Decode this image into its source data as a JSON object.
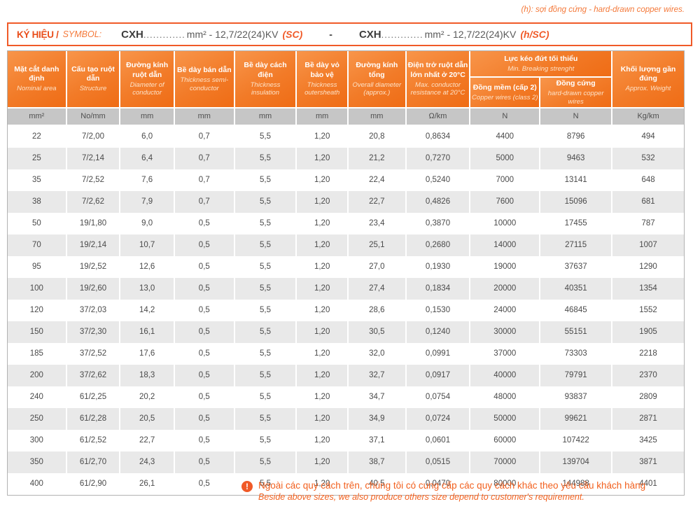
{
  "top_note": "(h): sợi đồng cứng - hard-drawn copper wires.",
  "symbol_box": {
    "label_vi": "KÝ HIỆU /",
    "label_en": "SYMBOL:",
    "code1": {
      "prefix": "CXH",
      "dots": ".............",
      "spec": "mm² - 12,7/22(24)KV",
      "variant": "(SC)"
    },
    "separator": "-",
    "code2": {
      "prefix": "CXH",
      "dots": ".............",
      "spec": "mm² - 12,7/22(24)KV",
      "variant": "(h/SC)"
    }
  },
  "table": {
    "columns": [
      {
        "vi": "Mặt cắt danh định",
        "en": "Nominal area",
        "unit": "mm²"
      },
      {
        "vi": "Cấu tạo ruột dẫn",
        "en": "Structure",
        "unit": "No/mm"
      },
      {
        "vi": "Đường kính ruột dẫn",
        "en": "Diameter of conductor",
        "unit": "mm"
      },
      {
        "vi": "Bề dày bán dẫn",
        "en": "Thickness semi-conductor",
        "unit": "mm"
      },
      {
        "vi": "Bề dày cách điện",
        "en": "Thickness insulation",
        "unit": "mm"
      },
      {
        "vi": "Bề dày vỏ bảo vệ",
        "en": "Thickness outersheath",
        "unit": "mm"
      },
      {
        "vi": "Đường kính tổng",
        "en": "Overall diameter (approx.)",
        "unit": "mm"
      },
      {
        "vi": "Điện trở ruột dẫn lớn nhất ở 20°C",
        "en": "Max. conductor resistance at 20°C",
        "unit": "Ω/km"
      },
      {
        "vi": "Đồng mềm (cấp 2)",
        "en": "Copper wires (class 2)",
        "unit": "N"
      },
      {
        "vi": "Đồng cứng",
        "en": "hard-drawn copper wires",
        "unit": "N"
      },
      {
        "vi": "Khối lượng gần đúng",
        "en": "Approx. Weight",
        "unit": "Kg/km"
      }
    ],
    "group_header": {
      "vi": "Lực kéo đứt tối thiểu",
      "en": "Min. Breaking strenght"
    },
    "rows": [
      [
        "22",
        "7/2,00",
        "6,0",
        "0,7",
        "5,5",
        "1,20",
        "20,8",
        "0,8634",
        "4400",
        "8796",
        "494"
      ],
      [
        "25",
        "7/2,14",
        "6,4",
        "0,7",
        "5,5",
        "1,20",
        "21,2",
        "0,7270",
        "5000",
        "9463",
        "532"
      ],
      [
        "35",
        "7/2,52",
        "7,6",
        "0,7",
        "5,5",
        "1,20",
        "22,4",
        "0,5240",
        "7000",
        "13141",
        "648"
      ],
      [
        "38",
        "7/2,62",
        "7,9",
        "0,7",
        "5,5",
        "1,20",
        "22,7",
        "0,4826",
        "7600",
        "15096",
        "681"
      ],
      [
        "50",
        "19/1,80",
        "9,0",
        "0,5",
        "5,5",
        "1,20",
        "23,4",
        "0,3870",
        "10000",
        "17455",
        "787"
      ],
      [
        "70",
        "19/2,14",
        "10,7",
        "0,5",
        "5,5",
        "1,20",
        "25,1",
        "0,2680",
        "14000",
        "27115",
        "1007"
      ],
      [
        "95",
        "19/2,52",
        "12,6",
        "0,5",
        "5,5",
        "1,20",
        "27,0",
        "0,1930",
        "19000",
        "37637",
        "1290"
      ],
      [
        "100",
        "19/2,60",
        "13,0",
        "0,5",
        "5,5",
        "1,20",
        "27,4",
        "0,1834",
        "20000",
        "40351",
        "1354"
      ],
      [
        "120",
        "37/2,03",
        "14,2",
        "0,5",
        "5,5",
        "1,20",
        "28,6",
        "0,1530",
        "24000",
        "46845",
        "1552"
      ],
      [
        "150",
        "37/2,30",
        "16,1",
        "0,5",
        "5,5",
        "1,20",
        "30,5",
        "0,1240",
        "30000",
        "55151",
        "1905"
      ],
      [
        "185",
        "37/2,52",
        "17,6",
        "0,5",
        "5,5",
        "1,20",
        "32,0",
        "0,0991",
        "37000",
        "73303",
        "2218"
      ],
      [
        "200",
        "37/2,62",
        "18,3",
        "0,5",
        "5,5",
        "1,20",
        "32,7",
        "0,0917",
        "40000",
        "79791",
        "2370"
      ],
      [
        "240",
        "61/2,25",
        "20,2",
        "0,5",
        "5,5",
        "1,20",
        "34,7",
        "0,0754",
        "48000",
        "93837",
        "2809"
      ],
      [
        "250",
        "61/2,28",
        "20,5",
        "0,5",
        "5,5",
        "1,20",
        "34,9",
        "0,0724",
        "50000",
        "99621",
        "2871"
      ],
      [
        "300",
        "61/2,52",
        "22,7",
        "0,5",
        "5,5",
        "1,20",
        "37,1",
        "0,0601",
        "60000",
        "107422",
        "3425"
      ],
      [
        "350",
        "61/2,70",
        "24,3",
        "0,5",
        "5,5",
        "1,20",
        "38,7",
        "0,0515",
        "70000",
        "139704",
        "3871"
      ],
      [
        "400",
        "61/2,90",
        "26,1",
        "0,5",
        "5,5",
        "1,20",
        "40,5",
        "0,0470",
        "80000",
        "144988",
        "4401"
      ]
    ]
  },
  "footer": {
    "icon": "!",
    "vi": "Ngoài các quy cách trên, chúng tôi có cung cấp các quy cách khác theo yêu cầu khách hàng",
    "en": "Beside above sizes, we also produce others size depend to customer's requirement."
  },
  "colors": {
    "accent_orange": "#f05a28",
    "header_orange_light": "#f8954a",
    "header_orange_dark": "#ef6c15",
    "unit_row_gray": "#c6c6c6",
    "stripe_gray": "#e9e9e9",
    "body_text": "#4a4a4a"
  }
}
